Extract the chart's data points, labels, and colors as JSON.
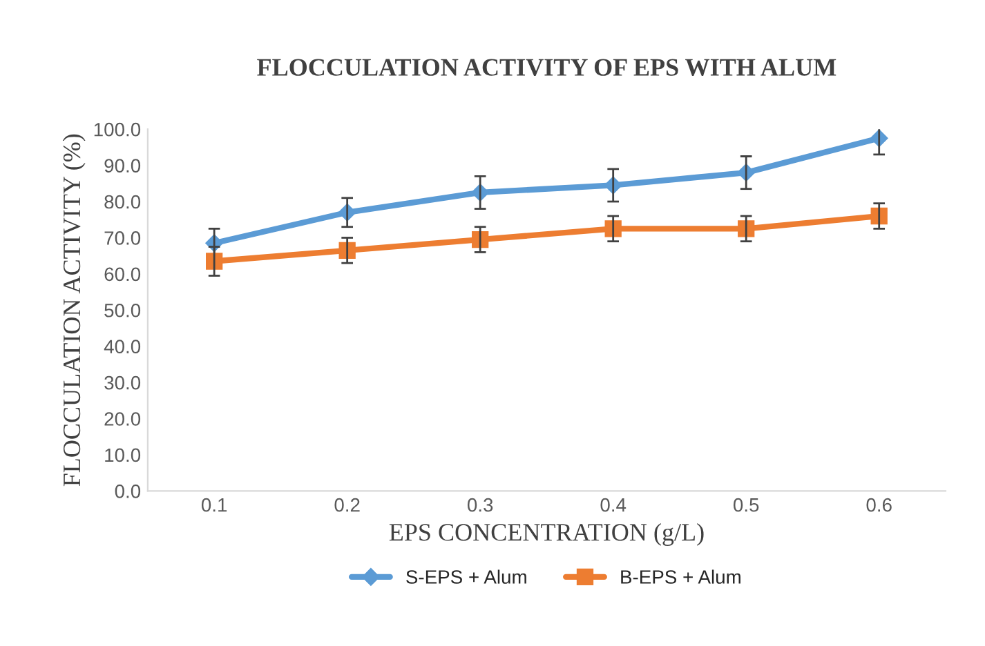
{
  "chart_data": {
    "type": "line",
    "title": "FLOCCULATION ACTIVITY OF EPS WITH ALUM",
    "xlabel": "EPS CONCENTRATION (g/L)",
    "ylabel": "FLOCCULATION ACTIVITY (%)",
    "categories": [
      "0.1",
      "0.2",
      "0.3",
      "0.4",
      "0.5",
      "0.6"
    ],
    "series": [
      {
        "name": "S-EPS + Alum",
        "color": "#5b9bd5",
        "marker": "diamond",
        "values": [
          68.5,
          77,
          82.5,
          84.5,
          88,
          97.5
        ],
        "errors": [
          4,
          4,
          4.5,
          4.5,
          4.5,
          4.5
        ]
      },
      {
        "name": "B-EPS + Alum",
        "color": "#ed7d31",
        "marker": "square",
        "values": [
          63.5,
          66.5,
          69.5,
          72.5,
          72.5,
          76
        ],
        "errors": [
          4,
          3.5,
          3.5,
          3.5,
          3.5,
          3.5
        ]
      }
    ],
    "ylim": [
      0,
      100
    ],
    "yticks": [
      {
        "value": 0,
        "label": "0.0"
      },
      {
        "value": 10,
        "label": "10.0"
      },
      {
        "value": 20,
        "label": "20.0"
      },
      {
        "value": 30,
        "label": "30.0"
      },
      {
        "value": 40,
        "label": "40.0"
      },
      {
        "value": 50,
        "label": "50.0"
      },
      {
        "value": 60,
        "label": "60.0"
      },
      {
        "value": 70,
        "label": "70.0"
      },
      {
        "value": 80,
        "label": "80.0"
      },
      {
        "value": 90,
        "label": "90.0"
      },
      {
        "value": 100,
        "label": "100.0"
      }
    ],
    "grid": false,
    "legend": "bottom"
  }
}
